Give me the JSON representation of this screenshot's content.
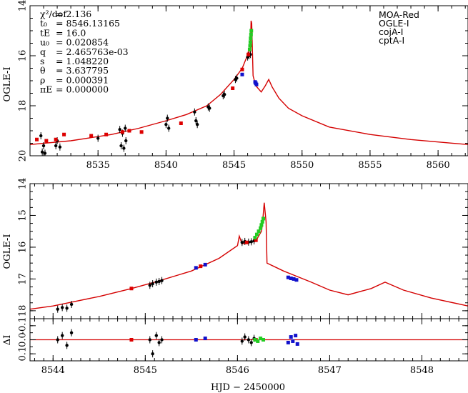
{
  "figure": {
    "xlabel": "HJD − 2450000"
  },
  "chart_data": [
    {
      "type": "scatter",
      "panel": "top",
      "ylabel": "OGLE-I",
      "xlim": [
        8530,
        8562.2
      ],
      "ylim": [
        20,
        14
      ],
      "y_inverted": true,
      "x_ticks": [
        8535,
        8540,
        8545,
        8550,
        8555,
        8560
      ],
      "x_tick_labels": [
        "8535",
        "8540",
        "8545",
        "8550",
        "8555",
        "8560"
      ],
      "y_ticks": [
        14,
        16,
        18,
        20
      ],
      "y_tick_labels": [
        "14",
        "16",
        "18",
        "20"
      ],
      "parameters": [
        {
          "name": "χ²/dof",
          "value": "= 2.136"
        },
        {
          "name": "t₀",
          "value": "= 8546.13165"
        },
        {
          "name": "tE",
          "value": "= 16.0"
        },
        {
          "name": "u₀",
          "value": "= 0.020854"
        },
        {
          "name": "q",
          "value": "= 2.465763e-03"
        },
        {
          "name": "s",
          "value": "= 1.048220"
        },
        {
          "name": "θ",
          "value": "= 3.637795"
        },
        {
          "name": "ρ",
          "value": "= 0.000391"
        },
        {
          "name": "πE",
          "value": "= 0.000000"
        }
      ],
      "legend_position": "top-right",
      "legend": [
        {
          "name": "MOA-Red",
          "color": "#000000"
        },
        {
          "name": "OGLE-I",
          "color": "#dd0000"
        },
        {
          "name": "cojA-I",
          "color": "#22cc22"
        },
        {
          "name": "cptA-I",
          "color": "#1111cc"
        }
      ],
      "model_color": "#d40000",
      "model": {
        "x": [
          8530,
          8533,
          8536,
          8538,
          8540,
          8541.5,
          8543,
          8544,
          8545,
          8545.6,
          8545.9,
          8546.1,
          8546.2,
          8546.25,
          8546.3,
          8546.4,
          8546.6,
          8547.0,
          8547.3,
          8547.55,
          8547.8,
          8548.3,
          8549,
          8550,
          8552,
          8555,
          8558,
          8560,
          8562.2
        ],
        "y": [
          19.55,
          19.4,
          19.15,
          18.9,
          18.6,
          18.35,
          18.0,
          17.55,
          16.95,
          16.5,
          16.1,
          15.75,
          15.85,
          14.6,
          14.7,
          16.8,
          17.2,
          17.45,
          17.2,
          16.95,
          17.25,
          17.7,
          18.1,
          18.4,
          18.85,
          19.15,
          19.35,
          19.45,
          19.55
        ]
      },
      "series": [
        {
          "name": "MOA-Red",
          "color": "#000000",
          "x": [
            8530.8,
            8530.9,
            8531.0,
            8531.1,
            8531.9,
            8532.0,
            8532.2,
            8535.0,
            8536.6,
            8536.7,
            8536.8,
            8536.9,
            8537.0,
            8537.05,
            8540.0,
            8540.1,
            8540.2,
            8542.1,
            8542.2,
            8542.3,
            8543.1,
            8543.2,
            8544.2,
            8544.3,
            8545.1,
            8545.2,
            8546.0,
            8546.1,
            8546.2
          ],
          "y": [
            19.2,
            19.85,
            19.6,
            19.9,
            19.6,
            19.4,
            19.65,
            19.3,
            18.95,
            19.6,
            19.1,
            19.7,
            18.9,
            19.4,
            18.75,
            18.5,
            18.9,
            18.25,
            18.6,
            18.75,
            18.05,
            18.1,
            17.6,
            17.55,
            16.95,
            16.9,
            16.05,
            16.0,
            15.95
          ]
        },
        {
          "name": "OGLE-I",
          "color": "#dd0000",
          "x": [
            8530.5,
            8531.2,
            8531.9,
            8532.5,
            8534.5,
            8535.6,
            8536.8,
            8537.3,
            8538.2,
            8541.1,
            8544.9,
            8545.6,
            8546.05
          ],
          "y": [
            19.35,
            19.4,
            19.35,
            19.15,
            19.2,
            19.15,
            19.05,
            19.0,
            19.05,
            18.7,
            17.3,
            16.55,
            15.95
          ]
        },
        {
          "name": "cojA-I",
          "color": "#22cc22",
          "x": [
            8546.15,
            8546.18,
            8546.2,
            8546.22,
            8546.25,
            8546.27
          ],
          "y": [
            15.75,
            15.6,
            15.45,
            15.3,
            15.15,
            15.0
          ]
        },
        {
          "name": "cptA-I",
          "color": "#1111cc",
          "x": [
            8545.6,
            8546.55,
            8546.6,
            8546.65
          ],
          "y": [
            16.75,
            17.05,
            17.1,
            17.15
          ]
        }
      ]
    },
    {
      "type": "scatter",
      "panel": "middle",
      "ylabel": "OGLE-I",
      "xlim": [
        8543.75,
        8548.5
      ],
      "ylim": [
        18.25,
        14
      ],
      "y_inverted": true,
      "y_ticks": [
        14,
        15,
        16,
        17,
        18
      ],
      "y_tick_labels": [
        "14",
        "15",
        "16",
        "17",
        "18"
      ],
      "model_color": "#d40000",
      "model": {
        "x": [
          8543.75,
          8544.0,
          8544.5,
          8544.85,
          8545.1,
          8545.5,
          8545.8,
          8546.0,
          8546.02,
          8546.05,
          8546.1,
          8546.2,
          8546.26,
          8546.27,
          8546.29,
          8546.31,
          8546.32,
          8546.5,
          8546.8,
          8547.0,
          8547.2,
          8547.45,
          8547.6,
          8547.8,
          8548.1,
          8548.5
        ],
        "y": [
          17.95,
          17.85,
          17.55,
          17.3,
          17.1,
          16.75,
          16.35,
          15.95,
          15.65,
          15.9,
          15.85,
          15.8,
          15.5,
          15.3,
          14.6,
          15.2,
          16.5,
          16.75,
          17.1,
          17.35,
          17.5,
          17.3,
          17.1,
          17.35,
          17.6,
          17.85
        ]
      },
      "series": [
        {
          "name": "MOA-Red",
          "color": "#000000",
          "x": [
            8544.05,
            8544.1,
            8544.15,
            8544.2,
            8545.05,
            8545.08,
            8545.12,
            8545.15,
            8545.18,
            8546.05,
            8546.08,
            8546.12,
            8546.15,
            8546.18
          ],
          "y": [
            17.95,
            17.9,
            17.92,
            17.8,
            17.2,
            17.15,
            17.1,
            17.08,
            17.05,
            15.85,
            15.82,
            15.84,
            15.83,
            15.8
          ]
        },
        {
          "name": "OGLE-I",
          "color": "#dd0000",
          "x": [
            8544.85,
            8545.6,
            8546.1,
            8546.2
          ],
          "y": [
            17.3,
            16.6,
            15.85,
            15.78
          ]
        },
        {
          "name": "cojA-I",
          "color": "#22cc22",
          "x": [
            8546.19,
            8546.21,
            8546.23,
            8546.25,
            8546.26,
            8546.27,
            8546.28
          ],
          "y": [
            15.7,
            15.6,
            15.5,
            15.4,
            15.3,
            15.2,
            15.1
          ]
        },
        {
          "name": "cptA-I",
          "color": "#1111cc",
          "x": [
            8545.55,
            8545.65,
            8546.55,
            8546.58,
            8546.61,
            8546.64
          ],
          "y": [
            16.65,
            16.55,
            16.95,
            16.98,
            17.0,
            17.03
          ]
        }
      ]
    },
    {
      "type": "scatter",
      "panel": "residuals",
      "ylabel": "ΔI",
      "xlim": [
        8543.75,
        8548.5
      ],
      "ylim": [
        0.15,
        -0.15
      ],
      "y_inverted": true,
      "x_ticks": [
        8544,
        8545,
        8546,
        8547,
        8548
      ],
      "x_tick_labels": [
        "8544",
        "8545",
        "8546",
        "8547",
        "8548"
      ],
      "y_ticks": [
        -0.1,
        0,
        0.1
      ],
      "y_tick_labels": [
        "-0.1",
        "0.0",
        "0.1"
      ],
      "zero_line_color": "#d40000",
      "series": [
        {
          "name": "MOA-Red",
          "color": "#000000",
          "x": [
            8544.05,
            8544.1,
            8544.15,
            8544.2,
            8545.05,
            8545.08,
            8545.12,
            8545.15,
            8545.18,
            8546.05,
            8546.08,
            8546.12,
            8546.15,
            8546.18
          ],
          "y": [
            0.0,
            -0.03,
            0.04,
            -0.05,
            0.0,
            0.1,
            -0.03,
            0.02,
            0.0,
            0.01,
            -0.02,
            0.0,
            0.02,
            -0.01
          ]
        },
        {
          "name": "OGLE-I",
          "color": "#dd0000",
          "x": [
            8544.85,
            8546.2
          ],
          "y": [
            0.0,
            0.0
          ]
        },
        {
          "name": "cojA-I",
          "color": "#22cc22",
          "x": [
            8546.19,
            8546.22,
            8546.25,
            8546.28
          ],
          "y": [
            0.0,
            0.01,
            -0.01,
            0.0
          ]
        },
        {
          "name": "cptA-I",
          "color": "#1111cc",
          "x": [
            8545.55,
            8545.65,
            8546.55,
            8546.58,
            8546.6,
            8546.63,
            8546.65
          ],
          "y": [
            0.0,
            -0.01,
            0.02,
            -0.02,
            0.01,
            -0.03,
            0.03
          ]
        }
      ]
    }
  ]
}
